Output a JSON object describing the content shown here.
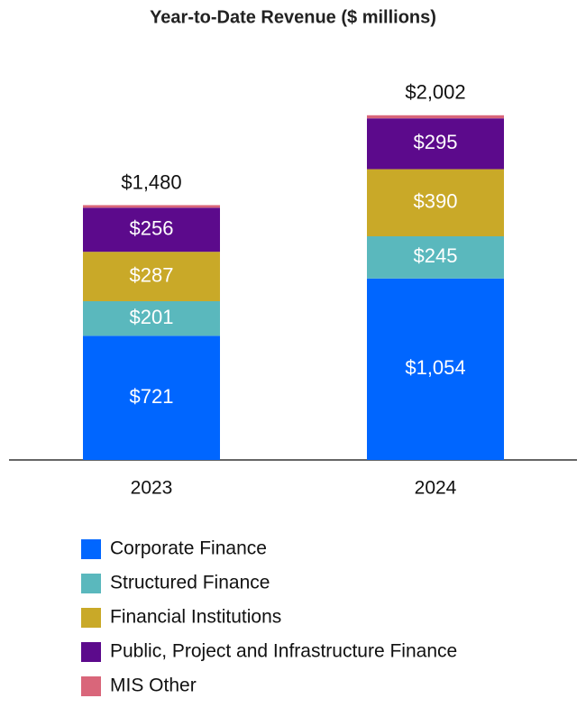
{
  "chart_data": {
    "type": "stacked_bar",
    "title": "Year-to-Date Revenue ($ millions)",
    "categories": [
      "2023",
      "2024"
    ],
    "series": [
      {
        "name": "Corporate Finance",
        "color": "#0066ff",
        "values": [
          721,
          1054
        ],
        "value_labels": [
          "$721",
          "$1,054"
        ]
      },
      {
        "name": "Structured Finance",
        "color": "#5ab8bd",
        "values": [
          201,
          245
        ],
        "value_labels": [
          "$201",
          "$245"
        ]
      },
      {
        "name": "Financial Institutions",
        "color": "#c9a928",
        "values": [
          287,
          390
        ],
        "value_labels": [
          "$287",
          "$390"
        ]
      },
      {
        "name": "Public, Project and Infrastructure Finance",
        "color": "#5c0a8c",
        "values": [
          256,
          295
        ],
        "value_labels": [
          "$256",
          "$295"
        ]
      },
      {
        "name": "MIS Other",
        "color": "#d9667a",
        "values": [
          15,
          18
        ]
      }
    ],
    "totals": [
      1480,
      2002
    ],
    "total_labels": [
      "$1,480",
      "$2,002"
    ],
    "ylim": [
      0,
      2200
    ]
  }
}
